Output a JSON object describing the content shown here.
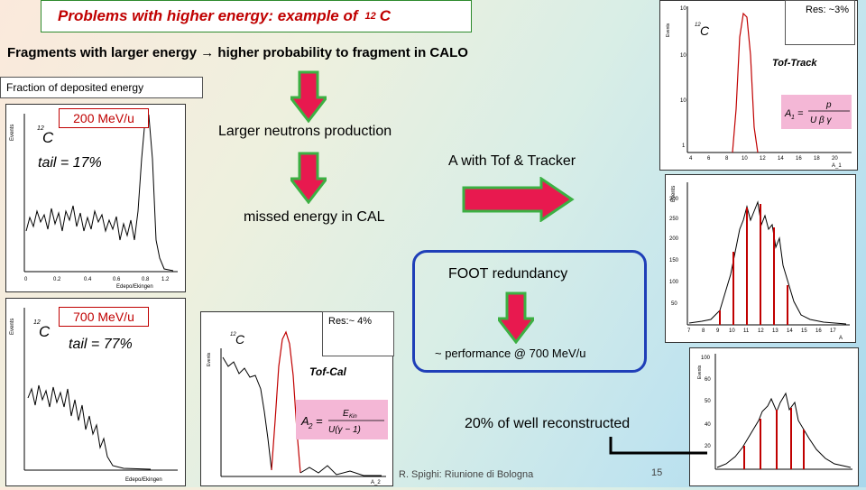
{
  "slide": {
    "title_text": "Problems with higher energy: example of",
    "title_isotope_mass": "12",
    "title_isotope_symbol": "C",
    "subtitle_part1": "Fragments with larger energy",
    "subtitle_part2": "higher probability to fragment in CALO",
    "fraction_label": "Fraction of deposited energy",
    "energy_200": "200 MeV/u",
    "tail_200": "tail = 17%",
    "energy_700": "700 MeV/u",
    "tail_700": "tail = 77%",
    "step1": "Larger neutrons production",
    "step2": "A with Tof & Tracker",
    "step3": "missed energy in CAL",
    "foot_redundancy": "FOOT redundancy",
    "performance": "~ performance @ 700 MeV/u",
    "well_reconstructed": "20% of well reconstructed",
    "res_right": "Res: ~3%",
    "res_middle": "Res:~ 4%",
    "footer": "R. Spighi: Riunione di Bologna",
    "page_number": "15"
  },
  "plots": {
    "carbon_label": "C",
    "carbon_mass": "12",
    "events_label": "Events",
    "tof_track_label": "Tof-Track",
    "tof_cal_label": "Tof-Cal",
    "x_edep_label": "Edepo/Ekingen",
    "x_a1_label": "A_1",
    "x_a2_label": "A_2",
    "x_a_label": "A"
  },
  "colors": {
    "title_red": "#c00000",
    "arrow_green": "#3cb043",
    "arrow_red": "#e8194f",
    "foot_blue": "#1f3fb8",
    "formula_pink": "#f4b7d6"
  }
}
